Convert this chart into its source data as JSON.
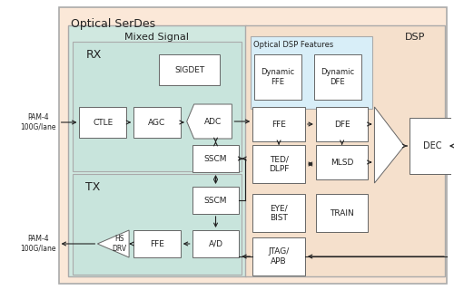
{
  "title": "Optical SerDes",
  "mixed_signal_label": "Mixed Signal",
  "dsp_label": "DSP",
  "rx_label": "RX",
  "tx_label": "TX",
  "optical_dsp_label": "Optical DSP Features",
  "bg_outer": "#fbe8d8",
  "bg_mixed": "#d0e8e0",
  "bg_rx": "#c8e4dc",
  "bg_tx": "#c8e4dc",
  "bg_dsp": "#f5e0cc",
  "bg_optical_dsp": "#d8eef8",
  "box_fill": "#ffffff",
  "box_edge": "#666666",
  "arrow_color": "#222222",
  "font_color": "#222222",
  "pam4_rx": "PAM-4\n100G/lane",
  "pam4_tx": "PAM-4\n100G/lane"
}
